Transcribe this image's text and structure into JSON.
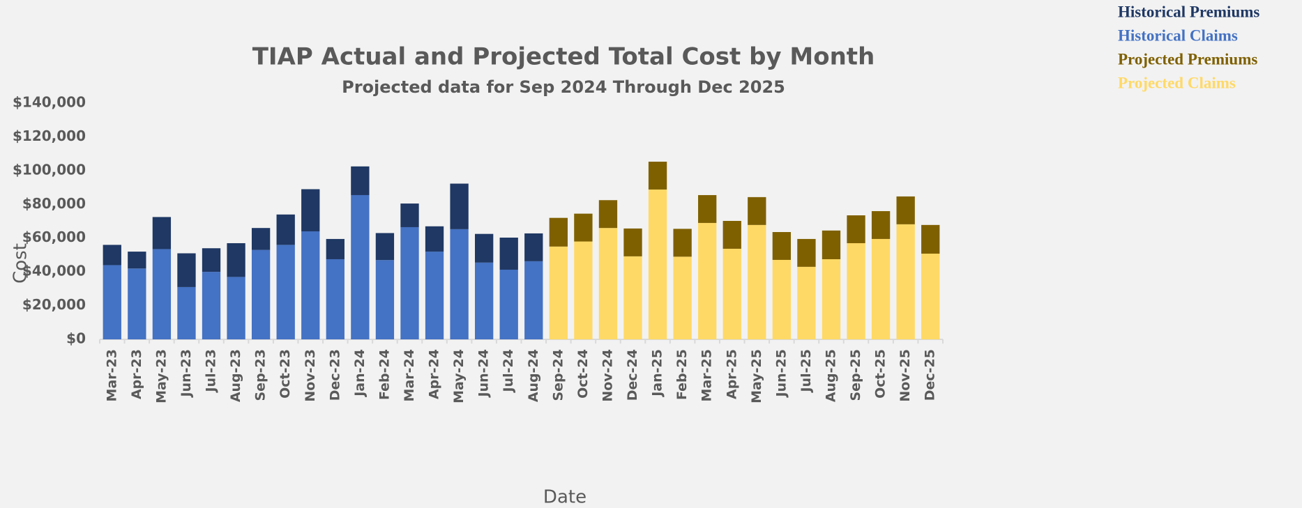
{
  "chart_data": {
    "type": "stacked_bar",
    "title": "TIAP Actual and Projected Total Cost by Month",
    "subtitle": "Projected data for Sep 2024 Through Dec 2025",
    "x_label": "Date",
    "y_label": "Cost",
    "categories": [
      "Mar-23",
      "Apr-23",
      "May-23",
      "Jun-23",
      "Jul-23",
      "Aug-23",
      "Sep-23",
      "Oct-23",
      "Nov-23",
      "Dec-23",
      "Jan-24",
      "Feb-24",
      "Mar-24",
      "Apr-24",
      "May-24",
      "Jun-24",
      "Jul-24",
      "Aug-24",
      "Sep-24",
      "Oct-24",
      "Nov-24",
      "Dec-24",
      "Jan-25",
      "Feb-25",
      "Mar-25",
      "Apr-25",
      "May-25",
      "Jun-25",
      "Jul-25",
      "Aug-25",
      "Sep-25",
      "Oct-25",
      "Nov-25",
      "Dec-25"
    ],
    "series": [
      {
        "name": "Historical Premiums",
        "color": "#1f3864",
        "values": [
          12000,
          10000,
          19000,
          20000,
          14000,
          20000,
          13000,
          18000,
          25000,
          12000,
          17000,
          16000,
          14000,
          15000,
          27000,
          17000,
          19000,
          16500,
          null,
          null,
          null,
          null,
          null,
          null,
          null,
          null,
          null,
          null,
          null,
          null,
          null,
          null,
          null,
          null
        ]
      },
      {
        "name": "Historical Claims",
        "color": "#4472c4",
        "values": [
          44000,
          42000,
          53500,
          31000,
          40000,
          37000,
          53000,
          56000,
          64000,
          47500,
          85500,
          47000,
          66500,
          52000,
          65300,
          45500,
          41300,
          46300,
          null,
          null,
          null,
          null,
          null,
          null,
          null,
          null,
          null,
          null,
          null,
          null,
          null,
          null,
          null,
          null
        ]
      },
      {
        "name": "Projected Premiums",
        "color": "#7f6000",
        "values": [
          null,
          null,
          null,
          null,
          null,
          null,
          null,
          null,
          null,
          null,
          null,
          null,
          null,
          null,
          null,
          null,
          null,
          null,
          17000,
          16500,
          16500,
          16500,
          16500,
          16500,
          16500,
          16500,
          16500,
          16500,
          16500,
          17000,
          16500,
          16500,
          16500,
          17000
        ]
      },
      {
        "name": "Projected Claims",
        "color": "#ffd966",
        "values": [
          null,
          null,
          null,
          null,
          null,
          null,
          null,
          null,
          null,
          null,
          null,
          null,
          null,
          null,
          null,
          null,
          null,
          null,
          55000,
          58000,
          66000,
          49200,
          88800,
          49000,
          69000,
          53700,
          67800,
          47100,
          43000,
          47500,
          57000,
          59500,
          68200,
          50800
        ]
      }
    ],
    "ylim": [
      0,
      140000
    ],
    "yticks": [
      {
        "value": 0,
        "label": "$0"
      },
      {
        "value": 20000,
        "label": "$20,000"
      },
      {
        "value": 40000,
        "label": "$40,000"
      },
      {
        "value": 60000,
        "label": "$60,000"
      },
      {
        "value": 80000,
        "label": "$80,000"
      },
      {
        "value": 100000,
        "label": "$100,000"
      },
      {
        "value": 120000,
        "label": "$120,000"
      },
      {
        "value": 140000,
        "label": "$140,000"
      }
    ],
    "grid": false,
    "legend": "top-right"
  }
}
